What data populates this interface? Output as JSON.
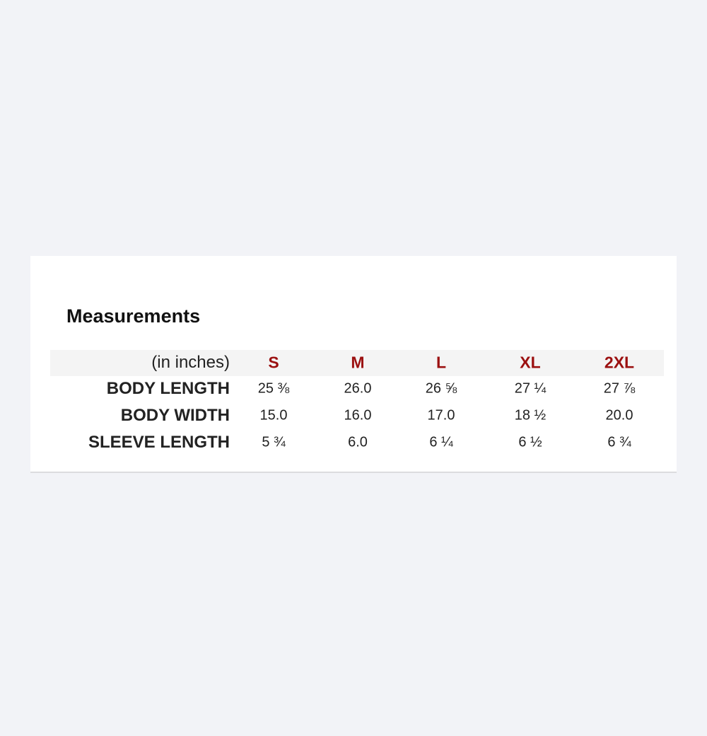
{
  "title": "Measurements",
  "header": {
    "unit_label": "(in inches)",
    "sizes": [
      "S",
      "M",
      "L",
      "XL",
      "2XL"
    ]
  },
  "rows": [
    {
      "label": "BODY LENGTH",
      "values": [
        "25 ⅜",
        "26.0",
        "26 ⅝",
        "27 ¼",
        "27 ⅞"
      ]
    },
    {
      "label": "BODY WIDTH",
      "values": [
        "15.0",
        "16.0",
        "17.0",
        "18 ½",
        "20.0"
      ]
    },
    {
      "label": "SLEEVE LENGTH",
      "values": [
        "5 ¾",
        "6.0",
        "6 ¼",
        "6 ½",
        "6 ¾"
      ]
    }
  ],
  "colors": {
    "size_header": "#9b1010",
    "background": "#f2f3f7"
  }
}
